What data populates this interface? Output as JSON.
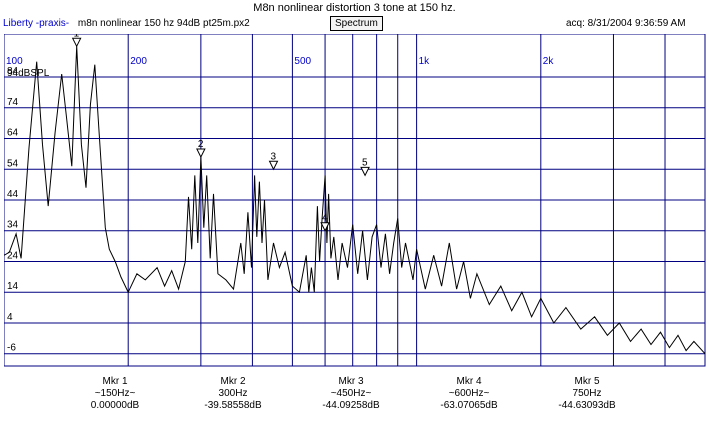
{
  "header": {
    "title": "M8n nonlinear distortion 3 tone at 150 hz.",
    "app_label": "Liberty -praxis-",
    "filename": "m8n nonlinear 150 hz 94dB pt25m.px2",
    "view_button": "Spectrum",
    "acquired": "acq: 8/31/2004 9:36:59 AM"
  },
  "colors": {
    "trace": "#000000",
    "grid": "#000080",
    "accent": "#0000cc"
  },
  "chart_data": {
    "type": "line",
    "x_scale": "log",
    "xlim": [
      100,
      5000
    ],
    "ylim": [
      -10,
      98
    ],
    "y_unit_label": "94dBSPL",
    "x_tick_labels": [
      {
        "x": 100,
        "label": "100"
      },
      {
        "x": 200,
        "label": "200"
      },
      {
        "x": 500,
        "label": "500"
      },
      {
        "x": 1000,
        "label": "1k"
      },
      {
        "x": 2000,
        "label": "2k"
      }
    ],
    "x_grid": [
      100,
      200,
      300,
      400,
      500,
      600,
      700,
      800,
      900,
      1000,
      2000,
      3000,
      4000
    ],
    "y_ticks": [
      84,
      74,
      64,
      54,
      44,
      34,
      24,
      14,
      4,
      -6
    ],
    "grid": true,
    "series": [
      {
        "points": [
          [
            100,
            26
          ],
          [
            103,
            27
          ],
          [
            107,
            33
          ],
          [
            110,
            25
          ],
          [
            115,
            61
          ],
          [
            120,
            89
          ],
          [
            124,
            62
          ],
          [
            128,
            42
          ],
          [
            133,
            66
          ],
          [
            138,
            85
          ],
          [
            142,
            70
          ],
          [
            146,
            55
          ],
          [
            150,
            94
          ],
          [
            154,
            62
          ],
          [
            158,
            48
          ],
          [
            162,
            75
          ],
          [
            166,
            88
          ],
          [
            170,
            66
          ],
          [
            176,
            35
          ],
          [
            180,
            28
          ],
          [
            186,
            24
          ],
          [
            192,
            19
          ],
          [
            200,
            14
          ],
          [
            210,
            20
          ],
          [
            220,
            18
          ],
          [
            235,
            22
          ],
          [
            245,
            16
          ],
          [
            255,
            21
          ],
          [
            265,
            15
          ],
          [
            275,
            24
          ],
          [
            280,
            45
          ],
          [
            285,
            28
          ],
          [
            290,
            52
          ],
          [
            295,
            30
          ],
          [
            300,
            58
          ],
          [
            305,
            35
          ],
          [
            310,
            52
          ],
          [
            316,
            25
          ],
          [
            322,
            46
          ],
          [
            330,
            20
          ],
          [
            345,
            18
          ],
          [
            360,
            15
          ],
          [
            375,
            30
          ],
          [
            382,
            20
          ],
          [
            390,
            40
          ],
          [
            398,
            22
          ],
          [
            405,
            52
          ],
          [
            410,
            32
          ],
          [
            416,
            50
          ],
          [
            422,
            30
          ],
          [
            428,
            44
          ],
          [
            436,
            18
          ],
          [
            450,
            30
          ],
          [
            465,
            22
          ],
          [
            480,
            27
          ],
          [
            500,
            16
          ],
          [
            520,
            14
          ],
          [
            540,
            26
          ],
          [
            548,
            14
          ],
          [
            556,
            22
          ],
          [
            565,
            14
          ],
          [
            575,
            42
          ],
          [
            582,
            24
          ],
          [
            590,
            38
          ],
          [
            600,
            52
          ],
          [
            606,
            30
          ],
          [
            612,
            46
          ],
          [
            620,
            25
          ],
          [
            630,
            32
          ],
          [
            645,
            18
          ],
          [
            660,
            30
          ],
          [
            680,
            22
          ],
          [
            700,
            36
          ],
          [
            720,
            20
          ],
          [
            740,
            34
          ],
          [
            760,
            18
          ],
          [
            780,
            32
          ],
          [
            800,
            36
          ],
          [
            820,
            22
          ],
          [
            840,
            33
          ],
          [
            860,
            20
          ],
          [
            880,
            30
          ],
          [
            900,
            38
          ],
          [
            920,
            22
          ],
          [
            940,
            30
          ],
          [
            960,
            24
          ],
          [
            980,
            18
          ],
          [
            1000,
            28
          ],
          [
            1050,
            15
          ],
          [
            1100,
            26
          ],
          [
            1150,
            16
          ],
          [
            1200,
            30
          ],
          [
            1250,
            15
          ],
          [
            1300,
            24
          ],
          [
            1350,
            12
          ],
          [
            1400,
            20
          ],
          [
            1500,
            10
          ],
          [
            1600,
            16
          ],
          [
            1700,
            8
          ],
          [
            1800,
            14
          ],
          [
            1900,
            6
          ],
          [
            2000,
            12
          ],
          [
            2150,
            4
          ],
          [
            2300,
            9
          ],
          [
            2500,
            2
          ],
          [
            2700,
            6
          ],
          [
            2900,
            0
          ],
          [
            3100,
            4
          ],
          [
            3300,
            -2
          ],
          [
            3500,
            2
          ],
          [
            3700,
            -3
          ],
          [
            3900,
            1
          ],
          [
            4100,
            -4
          ],
          [
            4300,
            0
          ],
          [
            4500,
            -5
          ],
          [
            4700,
            -2
          ],
          [
            5000,
            -6
          ]
        ]
      }
    ],
    "markers": [
      {
        "label": "1",
        "x": 150,
        "y": 94
      },
      {
        "label": "2",
        "x": 300,
        "y": 58
      },
      {
        "label": "3",
        "x": 450,
        "y": 54
      },
      {
        "label": "4",
        "x": 600,
        "y": 34
      },
      {
        "label": "5",
        "x": 750,
        "y": 52
      }
    ],
    "marker_readouts": [
      {
        "name": "Mkr 1",
        "freq": "~150Hz~",
        "value": "0.00000dB"
      },
      {
        "name": "Mkr 2",
        "freq": "300Hz",
        "value": "-39.58558dB"
      },
      {
        "name": "Mkr 3",
        "freq": "~450Hz~",
        "value": "-44.09258dB"
      },
      {
        "name": "Mkr 4",
        "freq": "~600Hz~",
        "value": "-63.07065dB"
      },
      {
        "name": "Mkr 5",
        "freq": "750Hz",
        "value": "-44.63093dB"
      }
    ]
  }
}
